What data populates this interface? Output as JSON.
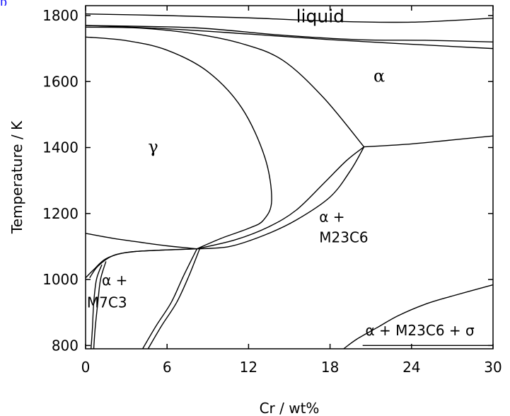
{
  "corner_mark": "p",
  "chart_data": {
    "type": "line",
    "title": "",
    "xlabel": "Cr / wt%",
    "ylabel": "Temperature / K",
    "xlim": [
      0,
      30
    ],
    "ylim": [
      790,
      1830
    ],
    "x_ticks": [
      0,
      6,
      12,
      18,
      24,
      30
    ],
    "y_ticks": [
      800,
      1000,
      1200,
      1400,
      1600,
      1800
    ],
    "grid": false,
    "legend": "none",
    "line_color": "#000000",
    "region_labels": [
      {
        "id": "liquid",
        "text": "liquid",
        "x": 15.5,
        "y": 1780,
        "style": "big"
      },
      {
        "id": "alpha",
        "text": "α",
        "x": 21.2,
        "y": 1600,
        "style": "greek"
      },
      {
        "id": "gamma",
        "text": "γ",
        "x": 4.6,
        "y": 1385,
        "style": "greek"
      },
      {
        "id": "alpha-m23c6-top",
        "text": "α  +",
        "x": 17.2,
        "y": 1175,
        "style": "sans"
      },
      {
        "id": "alpha-m23c6-bottom",
        "text": "M23C6",
        "x": 17.2,
        "y": 1113,
        "style": "sans"
      },
      {
        "id": "alpha-m7c3-top",
        "text": "α  +",
        "x": 1.2,
        "y": 983,
        "style": "sans"
      },
      {
        "id": "alpha-m7c3-bottom",
        "text": "M7C3",
        "x": 0.1,
        "y": 915,
        "style": "sans"
      },
      {
        "id": "alpha-m23c6-sigma",
        "text": "α + M23C6 + σ",
        "x": 20.6,
        "y": 831,
        "style": "sans"
      }
    ],
    "series": [
      {
        "points": [
          [
            0,
            1805
          ],
          [
            6,
            1800
          ],
          [
            12,
            1793
          ],
          [
            18,
            1783
          ],
          [
            24,
            1780
          ],
          [
            30,
            1792
          ]
        ]
      },
      {
        "points": [
          [
            0,
            1770
          ],
          [
            6,
            1760
          ],
          [
            12,
            1744
          ],
          [
            18,
            1727
          ],
          [
            24,
            1713
          ],
          [
            30,
            1700
          ]
        ]
      },
      {
        "points": [
          [
            0,
            1770
          ],
          [
            8,
            1763
          ],
          [
            14,
            1742
          ],
          [
            20,
            1727
          ],
          [
            25,
            1725
          ],
          [
            30,
            1720
          ]
        ]
      },
      {
        "points": [
          [
            0,
            1765
          ],
          [
            4,
            1762
          ],
          [
            8,
            1745
          ],
          [
            11.5,
            1715
          ],
          [
            14.5,
            1665
          ],
          [
            17.5,
            1552
          ],
          [
            20.5,
            1402
          ]
        ]
      },
      {
        "points": [
          [
            0,
            1735
          ],
          [
            3,
            1724
          ],
          [
            6,
            1695
          ],
          [
            9,
            1630
          ],
          [
            11.5,
            1520
          ],
          [
            13.2,
            1370
          ],
          [
            13.7,
            1240
          ],
          [
            13.1,
            1180
          ],
          [
            12,
            1155
          ],
          [
            10,
            1125
          ],
          [
            8.2,
            1093
          ]
        ]
      },
      {
        "points": [
          [
            20.5,
            1402
          ],
          [
            24,
            1411
          ],
          [
            27,
            1423
          ],
          [
            30,
            1435
          ]
        ]
      },
      {
        "points": [
          [
            8.2,
            1093
          ],
          [
            10.6,
            1100
          ],
          [
            13.2,
            1135
          ],
          [
            15.5,
            1180
          ],
          [
            18,
            1250
          ],
          [
            19.5,
            1330
          ],
          [
            20.5,
            1402
          ]
        ]
      },
      {
        "points": [
          [
            8.2,
            1093
          ],
          [
            11,
            1120
          ],
          [
            13.5,
            1160
          ],
          [
            15.5,
            1210
          ],
          [
            17.5,
            1290
          ],
          [
            19.2,
            1360
          ],
          [
            20.5,
            1402
          ]
        ]
      },
      {
        "points": [
          [
            0,
            1140
          ],
          [
            2,
            1125
          ],
          [
            4,
            1113
          ],
          [
            6,
            1102
          ],
          [
            8.2,
            1093
          ]
        ]
      },
      {
        "points": [
          [
            0,
            1005
          ],
          [
            0.6,
            1030
          ],
          [
            1.5,
            1063
          ],
          [
            3,
            1082
          ],
          [
            5,
            1088
          ],
          [
            8.2,
            1093
          ]
        ]
      },
      {
        "points": [
          [
            0.3,
            1005
          ],
          [
            0.9,
            1040
          ],
          [
            2,
            1072
          ],
          [
            3.5,
            1084
          ],
          [
            5.5,
            1089
          ],
          [
            8.2,
            1093
          ]
        ]
      },
      {
        "points": [
          [
            0.4,
            790
          ],
          [
            0.5,
            850
          ],
          [
            0.6,
            930
          ],
          [
            0.8,
            1000
          ],
          [
            1.2,
            1045
          ]
        ]
      },
      {
        "points": [
          [
            0.6,
            790
          ],
          [
            0.7,
            850
          ],
          [
            0.9,
            930
          ],
          [
            1.1,
            1000
          ],
          [
            1.5,
            1055
          ]
        ]
      },
      {
        "points": [
          [
            4.2,
            790
          ],
          [
            5.2,
            860
          ],
          [
            6.3,
            930
          ],
          [
            7.2,
            1010
          ],
          [
            8.2,
            1093
          ]
        ]
      },
      {
        "points": [
          [
            4.6,
            790
          ],
          [
            5.6,
            860
          ],
          [
            6.7,
            930
          ],
          [
            7.6,
            1010
          ],
          [
            8.4,
            1093
          ]
        ]
      },
      {
        "points": [
          [
            19,
            790
          ],
          [
            20,
            820
          ],
          [
            21.5,
            855
          ],
          [
            23,
            890
          ],
          [
            25,
            925
          ],
          [
            27,
            950
          ],
          [
            30,
            984
          ]
        ]
      },
      {
        "points": [
          [
            20.4,
            800
          ],
          [
            24,
            800
          ],
          [
            27,
            800
          ],
          [
            30,
            800
          ]
        ]
      }
    ]
  }
}
